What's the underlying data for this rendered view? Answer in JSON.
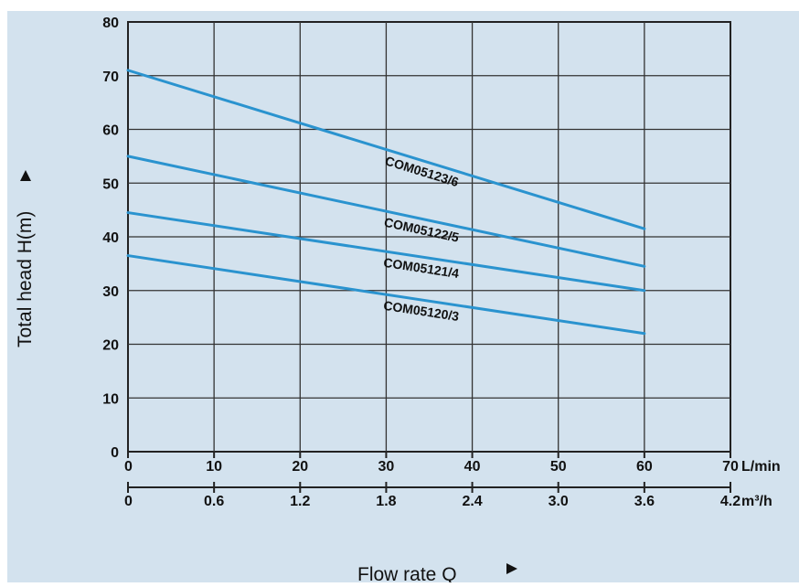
{
  "chart_data": {
    "type": "line",
    "title": "",
    "xlabel": "Flow rate  Q",
    "ylabel": "Total  head H(m)",
    "x_unit": "L/min",
    "x2_unit": "m³/h",
    "xlim": [
      0,
      70
    ],
    "ylim": [
      0,
      80
    ],
    "x_ticks": [
      0,
      10,
      20,
      30,
      40,
      50,
      60,
      70
    ],
    "x2_ticks": [
      "0",
      "0.6",
      "1.2",
      "1.8",
      "2.4",
      "3.0",
      "3.6",
      "4.2"
    ],
    "y_ticks": [
      0,
      10,
      20,
      30,
      40,
      50,
      60,
      70,
      80
    ],
    "grid": true,
    "legend": "inline labels",
    "colors": {
      "line": "#2a93cf",
      "grid": "#333333",
      "background": "#d3e2ee"
    },
    "series": [
      {
        "name": "COM05123/6",
        "x": [
          0,
          60
        ],
        "y": [
          71,
          41.5
        ]
      },
      {
        "name": "COM05122/5",
        "x": [
          0,
          60
        ],
        "y": [
          55,
          34.5
        ]
      },
      {
        "name": "COM05121/4",
        "x": [
          0,
          60
        ],
        "y": [
          44.5,
          30
        ]
      },
      {
        "name": "COM05120/3",
        "x": [
          0,
          60
        ],
        "y": [
          36.5,
          22
        ]
      }
    ]
  }
}
